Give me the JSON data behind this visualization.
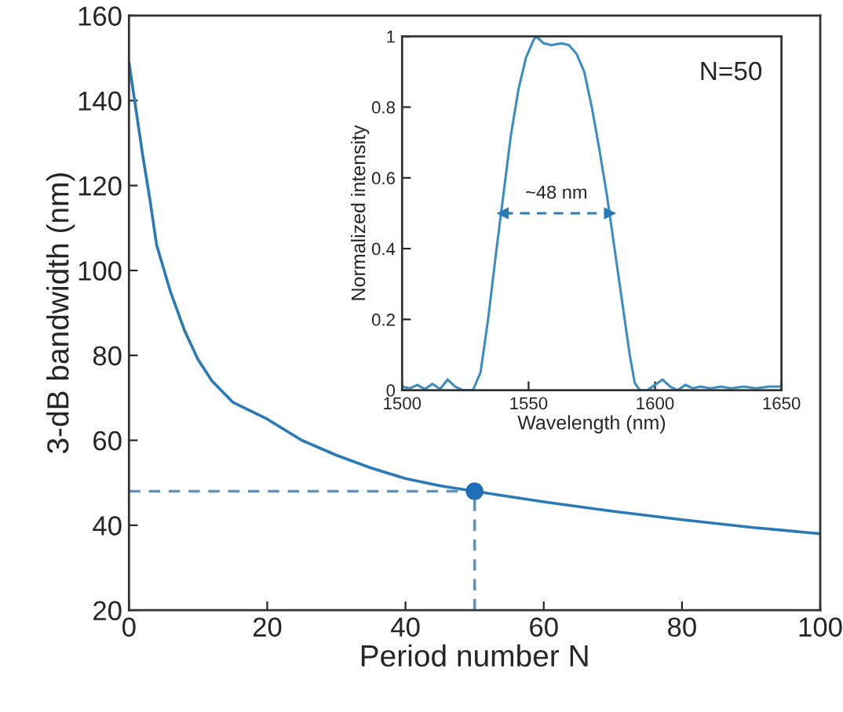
{
  "chart_data": [
    {
      "type": "line",
      "xlabel": "Period number N",
      "ylabel": "3-dB bandwidth (nm)",
      "xlim": [
        0,
        100
      ],
      "ylim": [
        20,
        160
      ],
      "xticks": [
        0,
        20,
        40,
        60,
        80,
        100
      ],
      "yticks": [
        20,
        40,
        60,
        80,
        100,
        120,
        140,
        160
      ],
      "grid": false,
      "series": [
        {
          "color": "#2a7ab8",
          "line_style": "solid",
          "x": [
            0,
            1,
            2,
            3,
            4,
            6,
            8,
            10,
            12,
            15,
            20,
            25,
            30,
            35,
            40,
            45,
            50,
            60,
            70,
            80,
            90,
            100
          ],
          "values": [
            149,
            138,
            127,
            117,
            106,
            95,
            86,
            79,
            74,
            69,
            65,
            60,
            56.5,
            53.5,
            51,
            49.3,
            48,
            45.5,
            43.3,
            41.3,
            39.5,
            38
          ]
        },
        {
          "type": "line",
          "color": "#5b93c4",
          "line_style": "dashed",
          "x": [
            0,
            50
          ],
          "values": [
            48,
            48
          ]
        },
        {
          "type": "line",
          "color": "#5b93c4",
          "line_style": "dashed",
          "x": [
            50,
            50
          ],
          "values": [
            20,
            48
          ]
        },
        {
          "type": "scatter",
          "color": "#1f6fb8",
          "marker": "circle",
          "x": [
            50
          ],
          "values": [
            48
          ]
        }
      ]
    },
    {
      "type": "line",
      "xlabel": "Wavelength (nm)",
      "ylabel": "Normalized intensity",
      "xlim": [
        1500,
        1650
      ],
      "ylim": [
        0,
        1
      ],
      "xticks": [
        1500,
        1550,
        1600,
        1650
      ],
      "yticks": [
        0,
        0.2,
        0.4,
        0.6,
        0.8,
        1
      ],
      "grid": false,
      "annotations": [
        "N=50",
        {
          "text": "~48 nm",
          "x": 1561,
          "y": 0.5
        }
      ],
      "series": [
        {
          "color": "#3a8cc4",
          "line_style": "solid",
          "x": [
            1500,
            1503,
            1506,
            1509,
            1512,
            1515,
            1518,
            1521,
            1524,
            1528,
            1531,
            1534,
            1537,
            1540,
            1543,
            1546,
            1549,
            1552,
            1553,
            1556,
            1559,
            1563,
            1566,
            1569,
            1572,
            1575,
            1578,
            1581,
            1584,
            1587,
            1590,
            1592,
            1594,
            1597,
            1600,
            1603,
            1606,
            1609,
            1612,
            1615,
            1618,
            1622,
            1626,
            1630,
            1635,
            1640,
            1645,
            1650
          ],
          "values": [
            0.01,
            0.005,
            0.015,
            0.003,
            0.018,
            0.003,
            0.03,
            0.01,
            0.0,
            0.0,
            0.05,
            0.2,
            0.38,
            0.55,
            0.72,
            0.85,
            0.94,
            0.99,
            1.0,
            0.98,
            0.975,
            0.98,
            0.975,
            0.95,
            0.9,
            0.8,
            0.68,
            0.55,
            0.4,
            0.25,
            0.1,
            0.02,
            0.0,
            0.0,
            0.015,
            0.03,
            0.01,
            0.0,
            0.015,
            0.005,
            0.01,
            0.005,
            0.01,
            0.005,
            0.01,
            0.005,
            0.01,
            0.01
          ]
        },
        {
          "type": "line",
          "color": "#2a7ab8",
          "line_style": "dashed",
          "marker": "triangle",
          "x": [
            1540,
            1582
          ],
          "values": [
            0.5,
            0.5
          ]
        }
      ]
    }
  ]
}
